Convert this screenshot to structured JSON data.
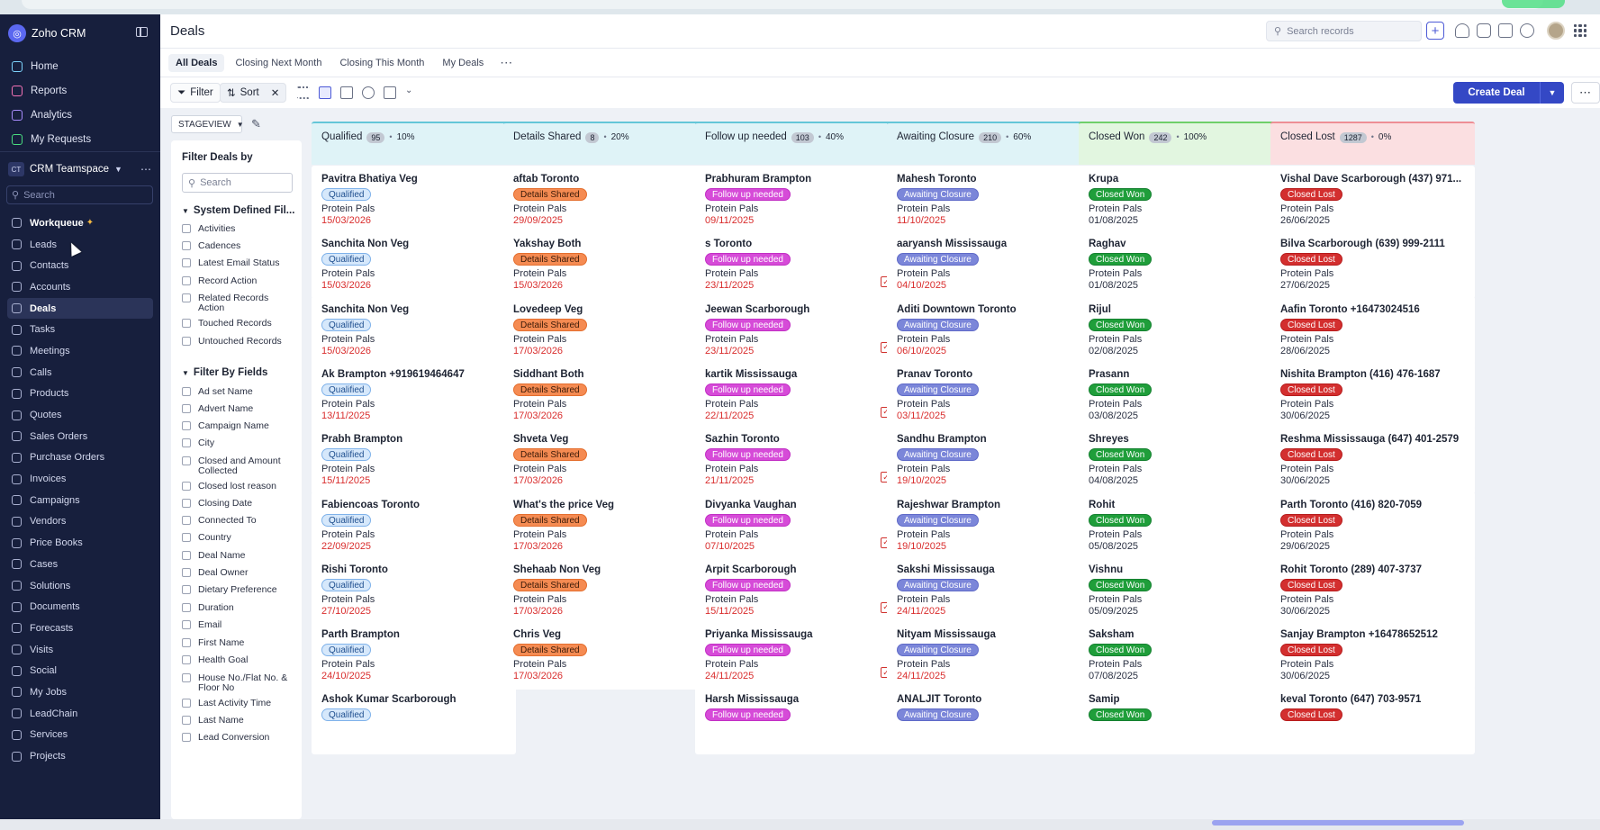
{
  "app": {
    "name": "Zoho CRM",
    "page_title": "Deals"
  },
  "sidebar": {
    "top_items": [
      {
        "label": "Home",
        "icon": "home-icon",
        "color": "#7dd3fc"
      },
      {
        "label": "Reports",
        "icon": "reports-icon",
        "color": "#f472b6"
      },
      {
        "label": "Analytics",
        "icon": "analytics-icon",
        "color": "#a78bfa"
      },
      {
        "label": "My Requests",
        "icon": "requests-icon",
        "color": "#4ade80"
      }
    ],
    "team": {
      "badge": "CT",
      "name": "CRM Teamspace"
    },
    "search_placeholder": "Search",
    "modules": [
      {
        "label": "Workqueue",
        "active": false,
        "bold": true
      },
      {
        "label": "Leads"
      },
      {
        "label": "Contacts"
      },
      {
        "label": "Accounts"
      },
      {
        "label": "Deals",
        "active": true
      },
      {
        "label": "Tasks"
      },
      {
        "label": "Meetings"
      },
      {
        "label": "Calls"
      },
      {
        "label": "Products"
      },
      {
        "label": "Quotes"
      },
      {
        "label": "Sales Orders"
      },
      {
        "label": "Purchase Orders"
      },
      {
        "label": "Invoices"
      },
      {
        "label": "Campaigns"
      },
      {
        "label": "Vendors"
      },
      {
        "label": "Price Books"
      },
      {
        "label": "Cases"
      },
      {
        "label": "Solutions"
      },
      {
        "label": "Documents"
      },
      {
        "label": "Forecasts"
      },
      {
        "label": "Visits"
      },
      {
        "label": "Social"
      },
      {
        "label": "My Jobs"
      },
      {
        "label": "LeadChain"
      },
      {
        "label": "Services"
      },
      {
        "label": "Projects"
      }
    ]
  },
  "header": {
    "search_placeholder": "Search records"
  },
  "tabs": [
    "All Deals",
    "Closing Next Month",
    "Closing This Month",
    "My Deals"
  ],
  "toolbar": {
    "filter_label": "Filter",
    "sort_label": "Sort",
    "create_label": "Create Deal"
  },
  "stageview": "STAGEVIEW",
  "filter_panel": {
    "title": "Filter Deals by",
    "search_placeholder": "Search",
    "system_section": "System Defined Fil...",
    "system_items": [
      "Activities",
      "Cadences",
      "Latest Email Status",
      "Record Action",
      "Related Records Action",
      "Touched Records",
      "Untouched Records"
    ],
    "fields_section": "Filter By Fields",
    "field_items": [
      "Ad set Name",
      "Advert Name",
      "Campaign Name",
      "City",
      "Closed and Amount Collected",
      "Closed lost reason",
      "Closing Date",
      "Connected To",
      "Country",
      "Deal Name",
      "Deal Owner",
      "Dietary Preference",
      "Duration",
      "Email",
      "First Name",
      "Health Goal",
      "House No./Flat No. & Floor No",
      "Last Activity Time",
      "Last Name",
      "Lead Conversion"
    ]
  },
  "columns": [
    {
      "title": "Qualified",
      "count": "95",
      "percent": "10%",
      "head_bg": "#dff3f7",
      "head_border": "#64c6d8",
      "badge": "Qualified",
      "badge_bg": "#d6e8fb",
      "badge_fg": "#1f4f8f",
      "badge_border": "#7fb2ea",
      "date_color": "#d92d2d",
      "cards": [
        {
          "name": "Pavitra Bhatiya Veg",
          "account": "Protein Pals",
          "date": "15/03/2026"
        },
        {
          "name": "Sanchita Non Veg",
          "account": "Protein Pals",
          "date": "15/03/2026"
        },
        {
          "name": "Sanchita Non Veg",
          "account": "Protein Pals",
          "date": "15/03/2026"
        },
        {
          "name": "Ak Brampton +919619464647",
          "account": "Protein Pals",
          "date": "13/11/2025"
        },
        {
          "name": "Prabh Brampton",
          "account": "Protein Pals",
          "date": "15/11/2025"
        },
        {
          "name": "Fabiencoas Toronto",
          "account": "Protein Pals",
          "date": "22/09/2025"
        },
        {
          "name": "Rishi Toronto",
          "account": "Protein Pals",
          "date": "27/10/2025"
        },
        {
          "name": "Parth Brampton",
          "account": "Protein Pals",
          "date": "24/10/2025"
        },
        {
          "name": "Ashok Kumar Scarborough",
          "account": "",
          "date": ""
        }
      ]
    },
    {
      "title": "Details Shared",
      "count": "8",
      "percent": "20%",
      "head_bg": "#dff3f7",
      "head_border": "#64c6d8",
      "badge": "Details Shared",
      "badge_bg": "#f58b52",
      "badge_fg": "#3a1a08",
      "badge_border": "#e46e2e",
      "date_color": "#d92d2d",
      "cards": [
        {
          "name": "aftab Toronto",
          "account": "Protein Pals",
          "date": "29/09/2025"
        },
        {
          "name": "Yakshay Both",
          "account": "Protein Pals",
          "date": "15/03/2026"
        },
        {
          "name": "Lovedeep Veg",
          "account": "Protein Pals",
          "date": "17/03/2026"
        },
        {
          "name": "Siddhant Both",
          "account": "Protein Pals",
          "date": "17/03/2026"
        },
        {
          "name": "Shveta Veg",
          "account": "Protein Pals",
          "date": "17/03/2026"
        },
        {
          "name": "What's the price Veg",
          "account": "Protein Pals",
          "date": "17/03/2026"
        },
        {
          "name": "Shehaab Non Veg",
          "account": "Protein Pals",
          "date": "17/03/2026"
        },
        {
          "name": "Chris Veg",
          "account": "Protein Pals",
          "date": "17/03/2026"
        }
      ]
    },
    {
      "title": "Follow up needed",
      "count": "103",
      "percent": "40%",
      "head_bg": "#dff3f7",
      "head_border": "#64c6d8",
      "badge": "Follow up needed",
      "badge_bg": "#d64bd8",
      "badge_fg": "#ffffff",
      "badge_border": "#c22fc4",
      "date_color": "#d92d2d",
      "cards": [
        {
          "name": "Prabhuram Brampton",
          "account": "Protein Pals",
          "date": "09/11/2025",
          "task": false
        },
        {
          "name": "s Toronto",
          "account": "Protein Pals",
          "date": "23/11/2025",
          "task": true
        },
        {
          "name": "Jeewan Scarborough",
          "account": "Protein Pals",
          "date": "23/11/2025",
          "task": true
        },
        {
          "name": "kartik Mississauga",
          "account": "Protein Pals",
          "date": "22/11/2025",
          "task": true
        },
        {
          "name": "Sazhin Toronto",
          "account": "Protein Pals",
          "date": "21/11/2025",
          "task": true
        },
        {
          "name": "Divyanka Vaughan",
          "account": "Protein Pals",
          "date": "07/10/2025",
          "task": true
        },
        {
          "name": "Arpit Scarborough",
          "account": "Protein Pals",
          "date": "15/11/2025",
          "task": true
        },
        {
          "name": "Priyanka Mississauga",
          "account": "Protein Pals",
          "date": "24/11/2025",
          "task": true
        },
        {
          "name": "Harsh Mississauga",
          "account": "",
          "date": ""
        }
      ]
    },
    {
      "title": "Awaiting Closure",
      "count": "210",
      "percent": "60%",
      "head_bg": "#dff3f7",
      "head_border": "#64c6d8",
      "badge": "Awaiting Closure",
      "badge_bg": "#7b86d9",
      "badge_fg": "#ffffff",
      "badge_border": "#5f6ac8",
      "date_color": "#d92d2d",
      "cards": [
        {
          "name": "Mahesh Toronto",
          "account": "Protein Pals",
          "date": "11/10/2025"
        },
        {
          "name": "aaryansh Mississauga",
          "account": "Protein Pals",
          "date": "04/10/2025"
        },
        {
          "name": "Aditi Downtown Toronto",
          "account": "Protein Pals",
          "date": "06/10/2025"
        },
        {
          "name": "Pranav Toronto",
          "account": "Protein Pals",
          "date": "03/11/2025"
        },
        {
          "name": "Sandhu Brampton",
          "account": "Protein Pals",
          "date": "19/10/2025"
        },
        {
          "name": "Rajeshwar Brampton",
          "account": "Protein Pals",
          "date": "19/10/2025"
        },
        {
          "name": "Sakshi Mississauga",
          "account": "Protein Pals",
          "date": "24/11/2025"
        },
        {
          "name": "Nityam Mississauga",
          "account": "Protein Pals",
          "date": "24/11/2025"
        },
        {
          "name": "ANALJIT Toronto",
          "account": "",
          "date": ""
        }
      ]
    },
    {
      "title": "Closed Won",
      "count": "242",
      "percent": "100%",
      "head_bg": "#e2f6e0",
      "head_border": "#6fcf6a",
      "badge": "Closed Won",
      "badge_bg": "#1f9e3a",
      "badge_fg": "#ffffff",
      "badge_border": "#158030",
      "date_color": "#2a3042",
      "cards": [
        {
          "name": "Krupa",
          "account": "Protein Pals",
          "date": "01/08/2025"
        },
        {
          "name": "Raghav",
          "account": "Protein Pals",
          "date": "01/08/2025"
        },
        {
          "name": "Rijul",
          "account": "Protein Pals",
          "date": "02/08/2025"
        },
        {
          "name": "Prasann",
          "account": "Protein Pals",
          "date": "03/08/2025"
        },
        {
          "name": "Shreyes",
          "account": "Protein Pals",
          "date": "04/08/2025"
        },
        {
          "name": "Rohit",
          "account": "Protein Pals",
          "date": "05/08/2025"
        },
        {
          "name": "Vishnu",
          "account": "Protein Pals",
          "date": "05/09/2025"
        },
        {
          "name": "Saksham",
          "account": "Protein Pals",
          "date": "07/08/2025"
        },
        {
          "name": "Samip",
          "account": "",
          "date": ""
        }
      ]
    },
    {
      "title": "Closed Lost",
      "count": "1287",
      "percent": "0%",
      "head_bg": "#fbdfe1",
      "head_border": "#ee8e95",
      "badge": "Closed Lost",
      "badge_bg": "#d32f2f",
      "badge_fg": "#ffffff",
      "badge_border": "#b71c1c",
      "date_color": "#2a3042",
      "cards": [
        {
          "name": "Vishal Dave Scarborough (437) 971...",
          "account": "Protein Pals",
          "date": "26/06/2025"
        },
        {
          "name": "Bilva Scarborough (639) 999-2111",
          "account": "Protein Pals",
          "date": "27/06/2025"
        },
        {
          "name": "Aafin Toronto +16473024516",
          "account": "Protein Pals",
          "date": "28/06/2025"
        },
        {
          "name": "Nishita Brampton (416) 476-1687",
          "account": "Protein Pals",
          "date": "30/06/2025"
        },
        {
          "name": "Reshma Mississauga (647) 401-2579",
          "account": "Protein Pals",
          "date": "30/06/2025"
        },
        {
          "name": "Parth Toronto (416) 820-7059",
          "account": "Protein Pals",
          "date": "29/06/2025"
        },
        {
          "name": "Rohit Toronto (289) 407-3737",
          "account": "Protein Pals",
          "date": "30/06/2025"
        },
        {
          "name": "Sanjay Brampton +16478652512",
          "account": "Protein Pals",
          "date": "30/06/2025"
        },
        {
          "name": "keval Toronto (647) 703-9571",
          "account": "",
          "date": ""
        }
      ]
    }
  ]
}
